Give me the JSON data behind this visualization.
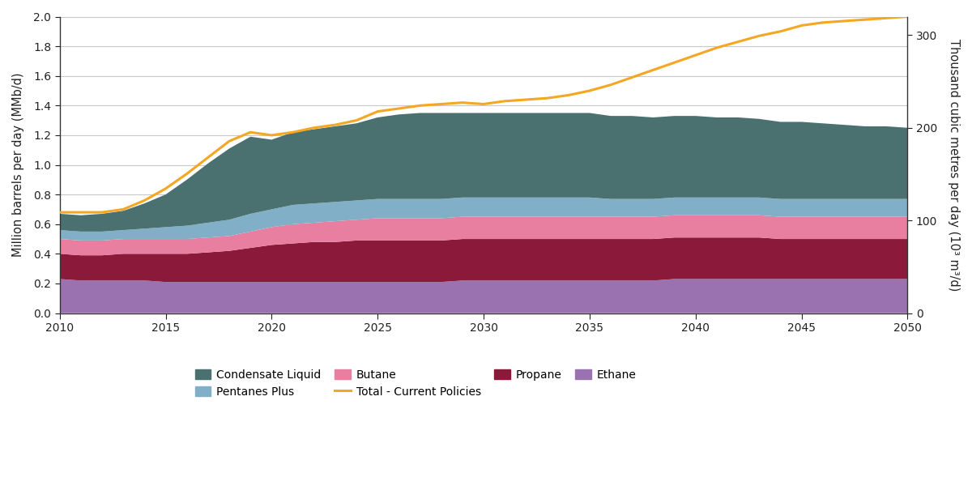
{
  "years": [
    2010,
    2011,
    2012,
    2013,
    2014,
    2015,
    2016,
    2017,
    2018,
    2019,
    2020,
    2021,
    2022,
    2023,
    2024,
    2025,
    2026,
    2027,
    2028,
    2029,
    2030,
    2031,
    2032,
    2033,
    2034,
    2035,
    2036,
    2037,
    2038,
    2039,
    2040,
    2041,
    2042,
    2043,
    2044,
    2045,
    2046,
    2047,
    2048,
    2049,
    2050
  ],
  "ethane": [
    0.23,
    0.22,
    0.22,
    0.22,
    0.22,
    0.21,
    0.21,
    0.21,
    0.21,
    0.21,
    0.21,
    0.21,
    0.21,
    0.21,
    0.21,
    0.21,
    0.21,
    0.21,
    0.21,
    0.22,
    0.22,
    0.22,
    0.22,
    0.22,
    0.22,
    0.22,
    0.22,
    0.22,
    0.22,
    0.23,
    0.23,
    0.23,
    0.23,
    0.23,
    0.23,
    0.23,
    0.23,
    0.23,
    0.23,
    0.23,
    0.23
  ],
  "propane": [
    0.17,
    0.17,
    0.17,
    0.18,
    0.18,
    0.19,
    0.19,
    0.2,
    0.21,
    0.23,
    0.25,
    0.26,
    0.27,
    0.27,
    0.28,
    0.28,
    0.28,
    0.28,
    0.28,
    0.28,
    0.28,
    0.28,
    0.28,
    0.28,
    0.28,
    0.28,
    0.28,
    0.28,
    0.28,
    0.28,
    0.28,
    0.28,
    0.28,
    0.28,
    0.27,
    0.27,
    0.27,
    0.27,
    0.27,
    0.27,
    0.27
  ],
  "butane": [
    0.1,
    0.1,
    0.1,
    0.1,
    0.1,
    0.1,
    0.1,
    0.1,
    0.1,
    0.11,
    0.12,
    0.13,
    0.13,
    0.14,
    0.14,
    0.15,
    0.15,
    0.15,
    0.15,
    0.15,
    0.15,
    0.15,
    0.15,
    0.15,
    0.15,
    0.15,
    0.15,
    0.15,
    0.15,
    0.15,
    0.15,
    0.15,
    0.15,
    0.15,
    0.15,
    0.15,
    0.15,
    0.15,
    0.15,
    0.15,
    0.15
  ],
  "pentanes_plus": [
    0.06,
    0.06,
    0.06,
    0.06,
    0.07,
    0.08,
    0.09,
    0.1,
    0.11,
    0.12,
    0.12,
    0.13,
    0.13,
    0.13,
    0.13,
    0.13,
    0.13,
    0.13,
    0.13,
    0.13,
    0.13,
    0.13,
    0.13,
    0.13,
    0.13,
    0.13,
    0.12,
    0.12,
    0.12,
    0.12,
    0.12,
    0.12,
    0.12,
    0.12,
    0.12,
    0.12,
    0.12,
    0.12,
    0.12,
    0.12,
    0.12
  ],
  "condensate": [
    0.11,
    0.11,
    0.12,
    0.13,
    0.17,
    0.22,
    0.31,
    0.4,
    0.48,
    0.52,
    0.47,
    0.49,
    0.5,
    0.51,
    0.52,
    0.55,
    0.57,
    0.58,
    0.58,
    0.57,
    0.57,
    0.57,
    0.57,
    0.57,
    0.57,
    0.57,
    0.56,
    0.56,
    0.55,
    0.55,
    0.55,
    0.54,
    0.54,
    0.53,
    0.52,
    0.52,
    0.51,
    0.5,
    0.49,
    0.49,
    0.48
  ],
  "total_current_policies": [
    0.68,
    0.68,
    0.68,
    0.7,
    0.76,
    0.84,
    0.94,
    1.05,
    1.16,
    1.22,
    1.2,
    1.22,
    1.25,
    1.27,
    1.3,
    1.36,
    1.38,
    1.4,
    1.41,
    1.42,
    1.41,
    1.43,
    1.44,
    1.45,
    1.47,
    1.5,
    1.54,
    1.59,
    1.64,
    1.69,
    1.74,
    1.79,
    1.83,
    1.87,
    1.9,
    1.94,
    1.96,
    1.97,
    1.98,
    1.99,
    2.0
  ],
  "colors": {
    "ethane": "#9b72b0",
    "propane": "#8b1a3a",
    "butane": "#e87fa0",
    "pentanes_plus": "#82afc8",
    "condensate": "#4a7070"
  },
  "line_color": "#f5a623",
  "ylabel_left": "Million barrels per day (MMb/d)",
  "ylabel_right": "Thousand cubic metres per day (10³ m³/d)",
  "ylim_left": [
    0,
    2.0
  ],
  "ylim_right": [
    0,
    320
  ],
  "yticks_left": [
    0.0,
    0.2,
    0.4,
    0.6,
    0.8,
    1.0,
    1.2,
    1.4,
    1.6,
    1.8,
    2.0
  ],
  "yticks_right": [
    0,
    100,
    200,
    300
  ],
  "xticks": [
    2010,
    2015,
    2020,
    2025,
    2030,
    2035,
    2040,
    2045,
    2050
  ],
  "legend_items": [
    {
      "label": "Condensate Liquid",
      "type": "patch",
      "color": "#4a7070"
    },
    {
      "label": "Pentanes Plus",
      "type": "patch",
      "color": "#82afc8"
    },
    {
      "label": "Butane",
      "type": "patch",
      "color": "#e87fa0"
    },
    {
      "label": "Total - Current Policies",
      "type": "line",
      "color": "#f5a623"
    },
    {
      "label": "Propane",
      "type": "patch",
      "color": "#8b1a3a"
    },
    {
      "label": "Ethane",
      "type": "patch",
      "color": "#9b72b0"
    }
  ],
  "background_color": "#ffffff",
  "grid_color": "#c8c8c8",
  "figsize": [
    12.0,
    6.0
  ],
  "dpi": 100
}
